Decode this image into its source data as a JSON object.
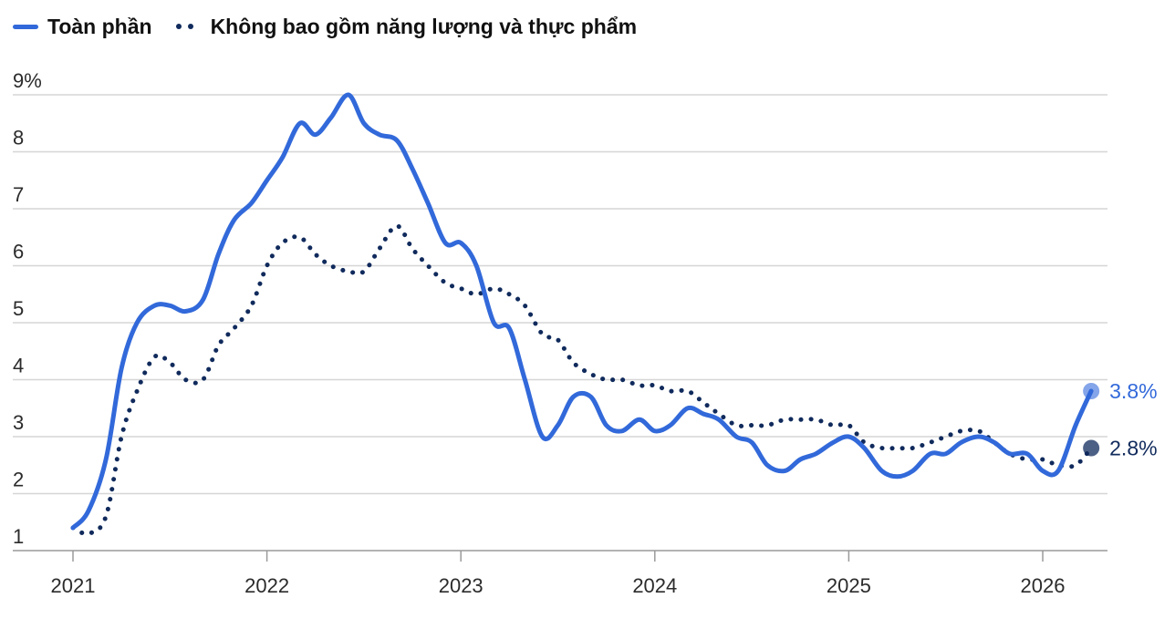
{
  "legend": {
    "series1_label": "Toàn phần",
    "series2_label": "Không bao gồm năng lượng và thực phẩm"
  },
  "colors": {
    "series1": "#3269DA",
    "series2": "#102A5C",
    "grid": "#d6d6d6",
    "axis": "#9a9a9a"
  },
  "chart_data": {
    "type": "line",
    "title": "",
    "xlabel": "",
    "ylabel": "",
    "unit": "%",
    "xlim": [
      2021.0,
      2026.33
    ],
    "ylim": [
      1,
      9
    ],
    "y_ticks": [
      1,
      2,
      3,
      4,
      5,
      6,
      7,
      8,
      9
    ],
    "y_tick_labels": [
      "1",
      "2",
      "3",
      "4",
      "5",
      "6",
      "7",
      "8",
      "9%"
    ],
    "x_ticks": [
      2021,
      2022,
      2023,
      2024,
      2025,
      2026
    ],
    "x_tick_labels": [
      "2021",
      "2022",
      "2023",
      "2024",
      "2025",
      "2026"
    ],
    "grid": true,
    "legend_position": "top-left",
    "series": [
      {
        "name": "Toàn phần",
        "style": "solid",
        "end_label": "3.8%",
        "points": [
          [
            2021.0,
            1.4
          ],
          [
            2021.08,
            1.7
          ],
          [
            2021.17,
            2.6
          ],
          [
            2021.25,
            4.2
          ],
          [
            2021.33,
            5.0
          ],
          [
            2021.42,
            5.3
          ],
          [
            2021.5,
            5.3
          ],
          [
            2021.58,
            5.2
          ],
          [
            2021.67,
            5.4
          ],
          [
            2021.75,
            6.2
          ],
          [
            2021.83,
            6.8
          ],
          [
            2021.92,
            7.1
          ],
          [
            2022.0,
            7.5
          ],
          [
            2022.08,
            7.9
          ],
          [
            2022.17,
            8.5
          ],
          [
            2022.25,
            8.3
          ],
          [
            2022.33,
            8.6
          ],
          [
            2022.42,
            9.0
          ],
          [
            2022.5,
            8.5
          ],
          [
            2022.58,
            8.3
          ],
          [
            2022.67,
            8.2
          ],
          [
            2022.75,
            7.7
          ],
          [
            2022.83,
            7.1
          ],
          [
            2022.92,
            6.4
          ],
          [
            2023.0,
            6.4
          ],
          [
            2023.08,
            6.0
          ],
          [
            2023.17,
            5.0
          ],
          [
            2023.25,
            4.9
          ],
          [
            2023.33,
            4.0
          ],
          [
            2023.42,
            3.0
          ],
          [
            2023.5,
            3.2
          ],
          [
            2023.58,
            3.7
          ],
          [
            2023.67,
            3.7
          ],
          [
            2023.75,
            3.2
          ],
          [
            2023.83,
            3.1
          ],
          [
            2023.92,
            3.3
          ],
          [
            2024.0,
            3.1
          ],
          [
            2024.08,
            3.2
          ],
          [
            2024.17,
            3.5
          ],
          [
            2024.25,
            3.4
          ],
          [
            2024.33,
            3.3
          ],
          [
            2024.42,
            3.0
          ],
          [
            2024.5,
            2.9
          ],
          [
            2024.58,
            2.5
          ],
          [
            2024.67,
            2.4
          ],
          [
            2024.75,
            2.6
          ],
          [
            2024.83,
            2.7
          ],
          [
            2024.92,
            2.9
          ],
          [
            2025.0,
            3.0
          ],
          [
            2025.08,
            2.8
          ],
          [
            2025.17,
            2.4
          ],
          [
            2025.25,
            2.3
          ],
          [
            2025.33,
            2.4
          ],
          [
            2025.42,
            2.7
          ],
          [
            2025.5,
            2.7
          ],
          [
            2025.58,
            2.9
          ],
          [
            2025.67,
            3.0
          ],
          [
            2025.75,
            2.9
          ],
          [
            2025.83,
            2.7
          ],
          [
            2025.92,
            2.7
          ],
          [
            2026.0,
            2.4
          ],
          [
            2026.08,
            2.4
          ],
          [
            2026.17,
            3.2
          ],
          [
            2026.25,
            3.8
          ]
        ]
      },
      {
        "name": "Không bao gồm năng lượng và thực phẩm",
        "style": "dotted",
        "end_label": "2.8%",
        "points": [
          [
            2021.0,
            1.4
          ],
          [
            2021.08,
            1.3
          ],
          [
            2021.17,
            1.6
          ],
          [
            2021.25,
            3.0
          ],
          [
            2021.33,
            3.8
          ],
          [
            2021.42,
            4.4
          ],
          [
            2021.5,
            4.3
          ],
          [
            2021.58,
            4.0
          ],
          [
            2021.67,
            4.0
          ],
          [
            2021.75,
            4.6
          ],
          [
            2021.83,
            4.9
          ],
          [
            2021.92,
            5.3
          ],
          [
            2022.0,
            6.0
          ],
          [
            2022.08,
            6.4
          ],
          [
            2022.17,
            6.5
          ],
          [
            2022.25,
            6.2
          ],
          [
            2022.33,
            6.0
          ],
          [
            2022.42,
            5.9
          ],
          [
            2022.5,
            5.9
          ],
          [
            2022.58,
            6.3
          ],
          [
            2022.67,
            6.7
          ],
          [
            2022.75,
            6.3
          ],
          [
            2022.83,
            6.0
          ],
          [
            2022.92,
            5.7
          ],
          [
            2023.0,
            5.6
          ],
          [
            2023.08,
            5.5
          ],
          [
            2023.17,
            5.6
          ],
          [
            2023.25,
            5.5
          ],
          [
            2023.33,
            5.3
          ],
          [
            2023.42,
            4.8
          ],
          [
            2023.5,
            4.7
          ],
          [
            2023.58,
            4.3
          ],
          [
            2023.67,
            4.1
          ],
          [
            2023.75,
            4.0
          ],
          [
            2023.83,
            4.0
          ],
          [
            2023.92,
            3.9
          ],
          [
            2024.0,
            3.9
          ],
          [
            2024.08,
            3.8
          ],
          [
            2024.17,
            3.8
          ],
          [
            2024.25,
            3.6
          ],
          [
            2024.33,
            3.4
          ],
          [
            2024.42,
            3.2
          ],
          [
            2024.5,
            3.2
          ],
          [
            2024.58,
            3.2
          ],
          [
            2024.67,
            3.3
          ],
          [
            2024.75,
            3.3
          ],
          [
            2024.83,
            3.3
          ],
          [
            2024.92,
            3.2
          ],
          [
            2025.0,
            3.2
          ],
          [
            2025.08,
            2.9
          ],
          [
            2025.17,
            2.8
          ],
          [
            2025.25,
            2.8
          ],
          [
            2025.33,
            2.8
          ],
          [
            2025.42,
            2.9
          ],
          [
            2025.5,
            3.0
          ],
          [
            2025.58,
            3.1
          ],
          [
            2025.67,
            3.1
          ],
          [
            2025.75,
            2.9
          ],
          [
            2025.83,
            2.7
          ],
          [
            2025.92,
            2.6
          ],
          [
            2026.0,
            2.6
          ],
          [
            2026.08,
            2.5
          ],
          [
            2026.17,
            2.5
          ],
          [
            2026.25,
            2.8
          ]
        ]
      }
    ]
  }
}
